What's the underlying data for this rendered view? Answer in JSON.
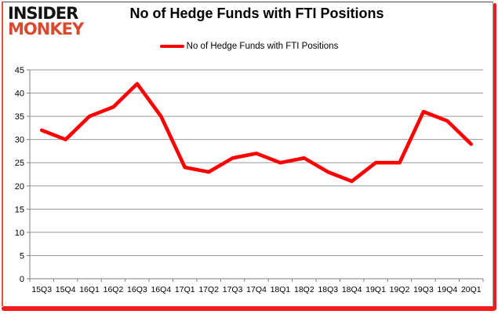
{
  "logo": {
    "line1": "INSIDER",
    "line2": "MONKEY",
    "line1_color": "#141414",
    "line2_color": "#d84a2e"
  },
  "header": {
    "title": "No of Hedge Funds with FTI Positions"
  },
  "legend": {
    "label": "No of Hedge Funds with FTI Positions",
    "swatch_color": "#ff0000"
  },
  "frame": {
    "accent_color": "#f51b1b",
    "left_accent_color": "#e4553c"
  },
  "chart_data": {
    "type": "line",
    "title": "No of Hedge Funds with FTI Positions",
    "categories": [
      "15Q3",
      "15Q4",
      "16Q1",
      "16Q2",
      "16Q3",
      "16Q4",
      "17Q1",
      "17Q2",
      "17Q3",
      "17Q4",
      "18Q1",
      "18Q2",
      "18Q3",
      "18Q4",
      "19Q1",
      "19Q2",
      "19Q3",
      "19Q4",
      "20Q1"
    ],
    "series": [
      {
        "name": "No of Hedge Funds with FTI Positions",
        "color": "#ff0000",
        "values": [
          32,
          30,
          35,
          37,
          42,
          35,
          24,
          23,
          26,
          27,
          25,
          26,
          23,
          21,
          25,
          25,
          36,
          34,
          29
        ]
      }
    ],
    "xlabel": "",
    "ylabel": "",
    "ylim": [
      0,
      45
    ],
    "ytick_step": 5,
    "grid": true,
    "legend_position": "top",
    "gridline_color": "#9a9a9a",
    "axis_color": "#7f7f7f",
    "tick_label_color": "#000000"
  }
}
